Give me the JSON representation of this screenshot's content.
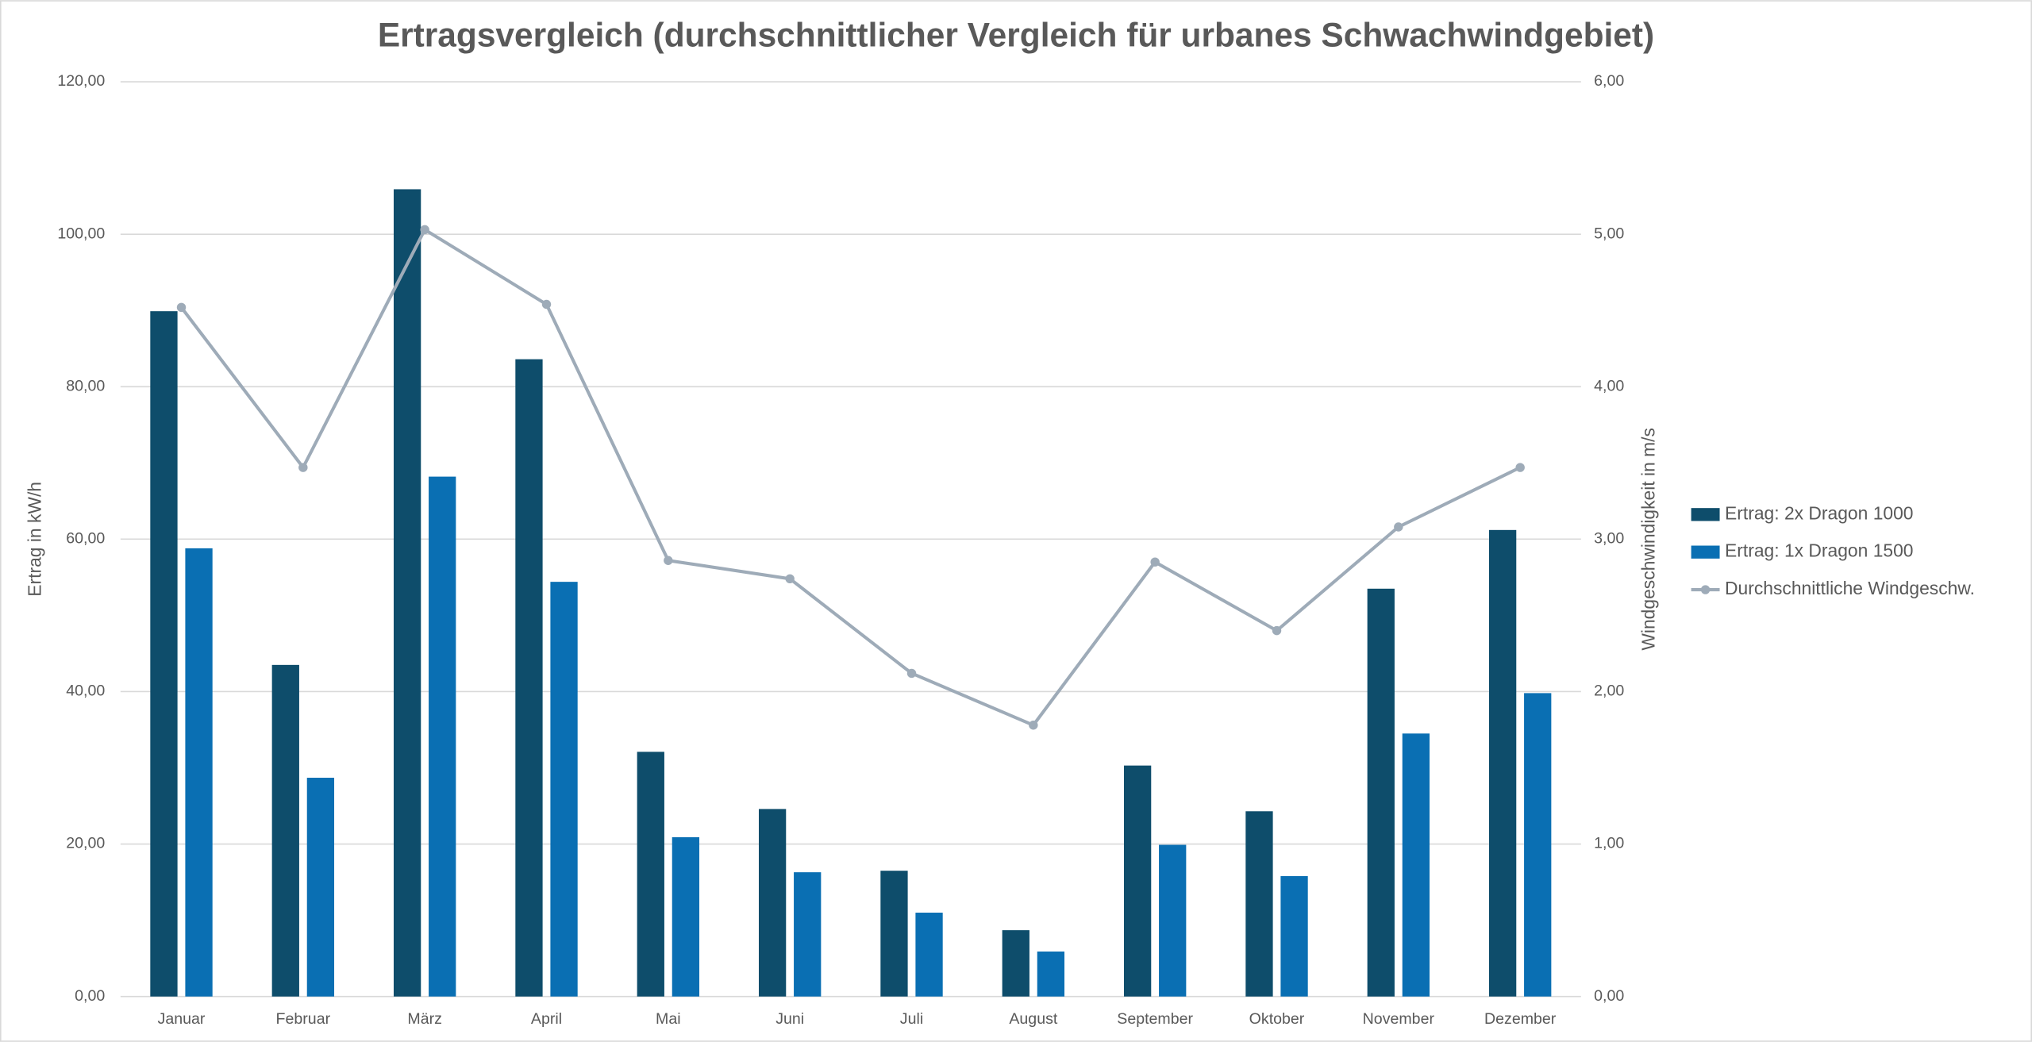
{
  "chart_data": {
    "type": "bar-line",
    "title": "Ertragsvergleich (durchschnittlicher Vergleich für urbanes Schwachwindgebiet)",
    "ylabel": "Ertrag in kW/h",
    "y2label": "Windgeschwindigkeit in m/s",
    "categories": [
      "Januar",
      "Februar",
      "März",
      "April",
      "Mai",
      "Juni",
      "Juli",
      "August",
      "September",
      "Oktober",
      "November",
      "Dezember"
    ],
    "series": [
      {
        "name": "Ertrag: 2x Dragon 1000",
        "type": "bar",
        "color": "#0e4d6b",
        "values": [
          89.9,
          43.5,
          105.9,
          83.6,
          32.1,
          24.6,
          16.5,
          8.7,
          30.3,
          24.3,
          53.5,
          61.2
        ]
      },
      {
        "name": "Ertrag: 1x Dragon 1500",
        "type": "bar",
        "color": "#0a6fb3",
        "values": [
          58.8,
          28.7,
          68.2,
          54.4,
          20.9,
          16.3,
          11.0,
          5.9,
          19.9,
          15.8,
          34.5,
          39.8
        ]
      },
      {
        "name": "Durchschnittliche Windgeschw.",
        "type": "line",
        "axis": "y2",
        "color": "#9eabb8",
        "values": [
          4.52,
          3.47,
          5.03,
          4.54,
          2.86,
          2.74,
          2.12,
          1.78,
          2.85,
          2.4,
          3.08,
          3.47
        ]
      }
    ],
    "ylim": [
      0,
      120
    ],
    "yticks": [
      {
        "value": 0,
        "label": "0,00"
      },
      {
        "value": 20,
        "label": "20,00"
      },
      {
        "value": 40,
        "label": "40,00"
      },
      {
        "value": 60,
        "label": "60,00"
      },
      {
        "value": 80,
        "label": "80,00"
      },
      {
        "value": 100,
        "label": "100,00"
      },
      {
        "value": 120,
        "label": "120,00"
      }
    ],
    "y2lim": [
      0,
      6
    ],
    "y2ticks": [
      {
        "value": 0,
        "label": "0,00"
      },
      {
        "value": 1,
        "label": "1,00"
      },
      {
        "value": 2,
        "label": "2,00"
      },
      {
        "value": 3,
        "label": "3,00"
      },
      {
        "value": 4,
        "label": "4,00"
      },
      {
        "value": 5,
        "label": "5,00"
      },
      {
        "value": 6,
        "label": "6,00"
      }
    ],
    "grid": true,
    "legend": "right"
  }
}
